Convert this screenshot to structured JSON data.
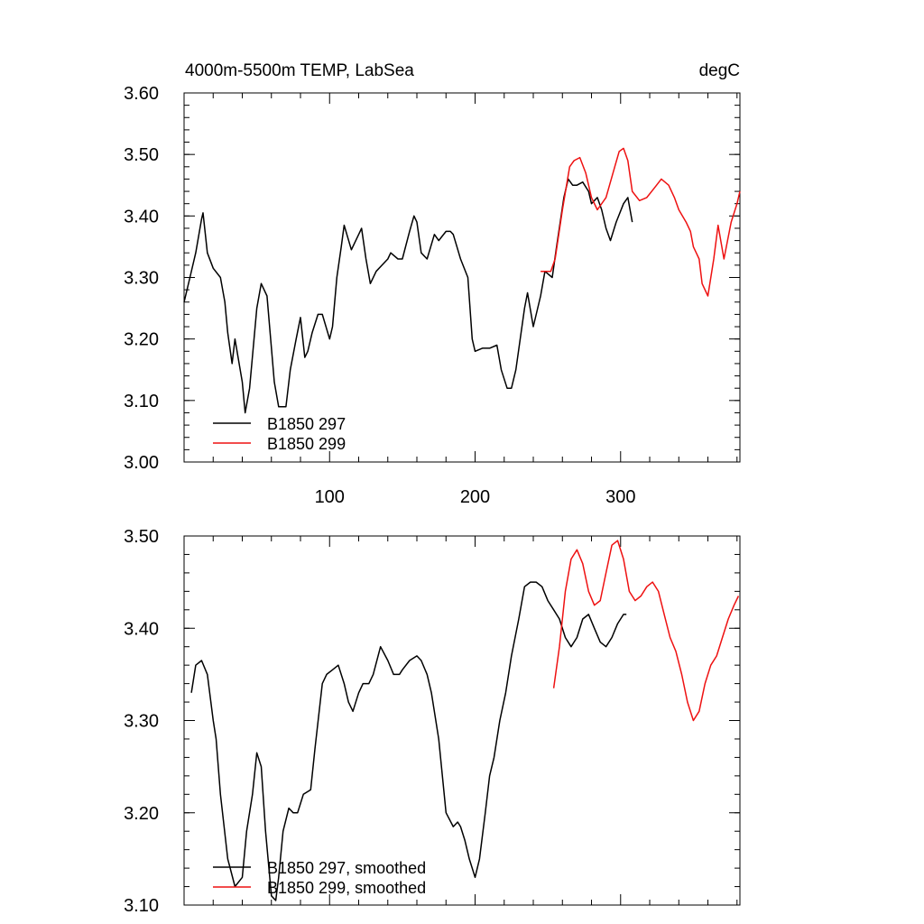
{
  "chart_data": [
    {
      "type": "line",
      "title": "4000m-5500m TEMP, LabSea",
      "units_label": "degC",
      "xlim": [
        0,
        382
      ],
      "ylim": [
        3.0,
        3.6
      ],
      "xticks": [
        100,
        200,
        300
      ],
      "xtick_labels": [
        "100",
        "200",
        "300"
      ],
      "yticks": [
        3.0,
        3.1,
        3.2,
        3.3,
        3.4,
        3.5,
        3.6
      ],
      "ytick_labels": [
        "3.00",
        "3.10",
        "3.20",
        "3.30",
        "3.40",
        "3.50",
        "3.60"
      ],
      "grid": false,
      "legend_position": "bottom-left",
      "series": [
        {
          "name": "B1850 297",
          "color": "#000000",
          "x": [
            0,
            4,
            8,
            12,
            13,
            16,
            20,
            25,
            28,
            30,
            33,
            35,
            40,
            42,
            45,
            50,
            53,
            57,
            62,
            65,
            68,
            70,
            73,
            77,
            80,
            83,
            85,
            88,
            92,
            95,
            100,
            102,
            105,
            108,
            110,
            115,
            120,
            122,
            125,
            128,
            132,
            136,
            140,
            142,
            147,
            150,
            155,
            158,
            160,
            163,
            167,
            172,
            175,
            180,
            183,
            185,
            190,
            195,
            198,
            200,
            205,
            210,
            215,
            218,
            222,
            225,
            228,
            234,
            236,
            240,
            245,
            248,
            253,
            256,
            261,
            264,
            267,
            270,
            274,
            278,
            280,
            284,
            287,
            290,
            293,
            297,
            302,
            305,
            308
          ],
          "values": [
            3.26,
            3.3,
            3.34,
            3.395,
            3.405,
            3.34,
            3.315,
            3.3,
            3.26,
            3.21,
            3.16,
            3.2,
            3.13,
            3.08,
            3.12,
            3.25,
            3.29,
            3.27,
            3.13,
            3.09,
            3.09,
            3.09,
            3.15,
            3.2,
            3.235,
            3.17,
            3.18,
            3.21,
            3.24,
            3.24,
            3.2,
            3.22,
            3.3,
            3.35,
            3.385,
            3.345,
            3.37,
            3.38,
            3.33,
            3.29,
            3.31,
            3.32,
            3.33,
            3.34,
            3.33,
            3.33,
            3.375,
            3.4,
            3.39,
            3.34,
            3.33,
            3.37,
            3.36,
            3.375,
            3.375,
            3.37,
            3.33,
            3.3,
            3.2,
            3.18,
            3.185,
            3.185,
            3.19,
            3.15,
            3.12,
            3.12,
            3.15,
            3.25,
            3.275,
            3.22,
            3.27,
            3.31,
            3.3,
            3.35,
            3.43,
            3.46,
            3.45,
            3.45,
            3.455,
            3.44,
            3.42,
            3.43,
            3.41,
            3.38,
            3.36,
            3.39,
            3.42,
            3.43,
            3.39
          ]
        },
        {
          "name": "B1850 299",
          "color": "#ee1111",
          "x": [
            245,
            252,
            255,
            260,
            265,
            268,
            272,
            276,
            280,
            284,
            290,
            296,
            299,
            302,
            305,
            308,
            313,
            318,
            323,
            328,
            333,
            337,
            340,
            345,
            348,
            350,
            352,
            354,
            356,
            360,
            364,
            367,
            371,
            376,
            380,
            382
          ],
          "values": [
            3.31,
            3.31,
            3.33,
            3.41,
            3.48,
            3.49,
            3.495,
            3.47,
            3.43,
            3.41,
            3.43,
            3.48,
            3.505,
            3.51,
            3.49,
            3.44,
            3.425,
            3.43,
            3.445,
            3.46,
            3.45,
            3.43,
            3.41,
            3.39,
            3.375,
            3.35,
            3.34,
            3.33,
            3.29,
            3.27,
            3.33,
            3.385,
            3.33,
            3.39,
            3.42,
            3.44
          ]
        }
      ]
    },
    {
      "type": "line",
      "xlim": [
        0,
        382
      ],
      "ylim": [
        3.1,
        3.5
      ],
      "xticks": [
        100,
        200,
        300
      ],
      "yticks": [
        3.1,
        3.2,
        3.3,
        3.4,
        3.5
      ],
      "ytick_labels": [
        "3.10",
        "3.20",
        "3.30",
        "3.40",
        "3.50"
      ],
      "grid": false,
      "legend_position": "bottom-left",
      "series": [
        {
          "name": "B1850 297, smoothed",
          "color": "#000000",
          "x": [
            5,
            8,
            12,
            16,
            20,
            22,
            25,
            30,
            35,
            40,
            43,
            47,
            50,
            53,
            56,
            60,
            63,
            65,
            68,
            72,
            75,
            78,
            82,
            87,
            90,
            95,
            98,
            102,
            106,
            110,
            113,
            116,
            120,
            123,
            127,
            130,
            135,
            140,
            144,
            148,
            150,
            155,
            160,
            163,
            167,
            170,
            175,
            180,
            185,
            188,
            190,
            193,
            196,
            200,
            203,
            207,
            210,
            213,
            217,
            221,
            225,
            230,
            234,
            238,
            242,
            246,
            250,
            254,
            258,
            262,
            266,
            270,
            274,
            278,
            282,
            286,
            290,
            294,
            298,
            302,
            304
          ],
          "values": [
            3.33,
            3.36,
            3.365,
            3.35,
            3.3,
            3.28,
            3.22,
            3.15,
            3.12,
            3.13,
            3.18,
            3.22,
            3.265,
            3.25,
            3.18,
            3.11,
            3.105,
            3.13,
            3.18,
            3.205,
            3.2,
            3.2,
            3.22,
            3.225,
            3.27,
            3.34,
            3.35,
            3.355,
            3.36,
            3.34,
            3.32,
            3.31,
            3.33,
            3.34,
            3.34,
            3.35,
            3.38,
            3.365,
            3.35,
            3.35,
            3.355,
            3.365,
            3.37,
            3.365,
            3.35,
            3.33,
            3.28,
            3.2,
            3.185,
            3.19,
            3.185,
            3.17,
            3.15,
            3.13,
            3.15,
            3.2,
            3.24,
            3.26,
            3.3,
            3.33,
            3.37,
            3.41,
            3.445,
            3.45,
            3.45,
            3.445,
            3.43,
            3.42,
            3.41,
            3.39,
            3.38,
            3.39,
            3.41,
            3.415,
            3.4,
            3.385,
            3.38,
            3.39,
            3.405,
            3.415,
            3.415
          ]
        },
        {
          "name": "B1850 299, smoothed",
          "color": "#ee1111",
          "x": [
            254,
            258,
            262,
            266,
            270,
            274,
            278,
            282,
            286,
            290,
            294,
            298,
            302,
            306,
            310,
            314,
            318,
            322,
            326,
            330,
            334,
            338,
            342,
            346,
            350,
            354,
            358,
            362,
            366,
            370,
            374,
            378,
            381
          ],
          "values": [
            3.335,
            3.38,
            3.44,
            3.475,
            3.485,
            3.47,
            3.44,
            3.425,
            3.43,
            3.46,
            3.49,
            3.495,
            3.475,
            3.44,
            3.43,
            3.435,
            3.445,
            3.45,
            3.44,
            3.415,
            3.39,
            3.375,
            3.35,
            3.32,
            3.3,
            3.31,
            3.34,
            3.36,
            3.37,
            3.39,
            3.41,
            3.425,
            3.435
          ]
        }
      ]
    }
  ]
}
